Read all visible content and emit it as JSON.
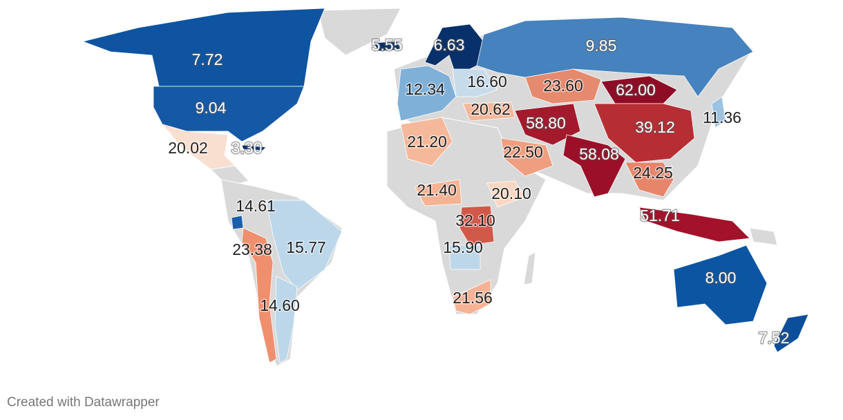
{
  "map": {
    "base_color": "#d9d9d9",
    "regions": [
      {
        "value": 7.72,
        "value_label": "7.72",
        "color": "#0e54a0",
        "text_color": "#ffffff"
      },
      {
        "value": 9.04,
        "value_label": "9.04",
        "color": "#1459a6",
        "text_color": "#ffffff"
      },
      {
        "value": 20.02,
        "value_label": "20.02",
        "color": "#f9dfd0",
        "text_color": "#222222"
      },
      {
        "value": 3.3,
        "value_label": "3.30",
        "color": "#08306b",
        "text_color": "#ffffff"
      },
      {
        "value": 5.55,
        "value_label": "5.55",
        "color": "#08306b",
        "text_color": "#ffffff"
      },
      {
        "value": 6.63,
        "value_label": "6.63",
        "color": "#08306b",
        "text_color": "#ffffff"
      },
      {
        "value": 9.85,
        "value_label": "9.85",
        "color": "#4682bd",
        "text_color": "#ffffff"
      },
      {
        "value": 12.34,
        "value_label": "12.34",
        "color": "#7fb0d8",
        "text_color": "#222222"
      },
      {
        "value": 16.6,
        "value_label": "16.60",
        "color": "#c7dceb",
        "text_color": "#222222"
      },
      {
        "value": 23.6,
        "value_label": "23.60",
        "color": "#e58a6e",
        "text_color": "#222222"
      },
      {
        "value": 62.0,
        "value_label": "62.00",
        "color": "#8e0c25",
        "text_color": "#ffffff"
      },
      {
        "value": 20.62,
        "value_label": "20.62",
        "color": "#f4b79a",
        "text_color": "#222222"
      },
      {
        "value": 11.36,
        "value_label": "11.36",
        "color": "#9ec3e0",
        "text_color": "#222222"
      },
      {
        "value": 58.8,
        "value_label": "58.80",
        "color": "#a21a2c",
        "text_color": "#ffffff"
      },
      {
        "value": 39.12,
        "value_label": "39.12",
        "color": "#b72d34",
        "text_color": "#ffffff"
      },
      {
        "value": 21.2,
        "value_label": "21.20",
        "color": "#f6b89a",
        "text_color": "#222222"
      },
      {
        "value": 22.5,
        "value_label": "22.50",
        "color": "#ef9e7f",
        "text_color": "#222222"
      },
      {
        "value": 58.08,
        "value_label": "58.08",
        "color": "#9b1028",
        "text_color": "#ffffff"
      },
      {
        "value": 24.25,
        "value_label": "24.25",
        "color": "#e7856a",
        "text_color": "#222222"
      },
      {
        "value": 21.4,
        "value_label": "21.40",
        "color": "#f5b394",
        "text_color": "#222222"
      },
      {
        "value": 20.1,
        "value_label": "20.10",
        "color": "#fbd7c3",
        "text_color": "#222222"
      },
      {
        "value": 14.61,
        "value_label": "14.61",
        "color": "#1b5fa8",
        "text_color": "#222222"
      },
      {
        "value": 51.71,
        "value_label": "51.71",
        "color": "#a3122a",
        "text_color": "#ffffff"
      },
      {
        "value": 32.1,
        "value_label": "32.10",
        "color": "#d1594a",
        "text_color": "#222222"
      },
      {
        "value": 23.38,
        "value_label": "23.38",
        "color": "#ef8f6e",
        "text_color": "#222222"
      },
      {
        "value": 15.77,
        "value_label": "15.77",
        "color": "#bcd7ea",
        "text_color": "#222222"
      },
      {
        "value": 15.9,
        "value_label": "15.90",
        "color": "#bcd7ea",
        "text_color": "#222222"
      },
      {
        "value": 8.0,
        "value_label": "8.00",
        "color": "#0b55a3",
        "text_color": "#ffffff"
      },
      {
        "value": 14.6,
        "value_label": "14.60",
        "color": "#bcd7ea",
        "text_color": "#222222"
      },
      {
        "value": 21.56,
        "value_label": "21.56",
        "color": "#f6b294",
        "text_color": "#222222"
      },
      {
        "value": 7.52,
        "value_label": "7.52",
        "color": "#0b4f9a",
        "text_color": "#ffffff"
      }
    ],
    "credit": "Created with Datawrapper"
  }
}
